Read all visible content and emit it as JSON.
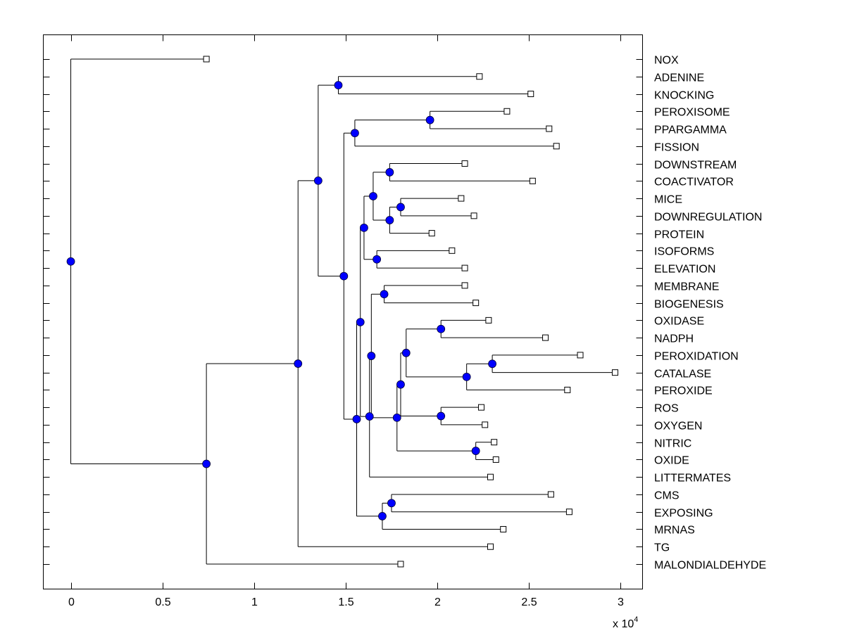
{
  "chart_data": {
    "type": "dendrogram",
    "title": "",
    "xlabel": "",
    "ylabel": "",
    "x_exponent_label": "x 10",
    "x_exponent": "4",
    "xlim": [
      -0.15,
      3.12
    ],
    "xticks": [
      0,
      0.5,
      1,
      1.5,
      2,
      2.5,
      3
    ],
    "xtick_labels": [
      "0",
      "0.5",
      "1",
      "1.5",
      "2",
      "2.5",
      "3"
    ],
    "grid": false,
    "node_color": "#0000ff",
    "leaf_marker": "open-square",
    "leaves": [
      "NOX",
      "ADENINE",
      "KNOCKING",
      "PEROXISOME",
      "PPARGAMMA",
      "FISSION",
      "DOWNSTREAM",
      "COACTIVATOR",
      "MICE",
      "DOWNREGULATION",
      "PROTEIN",
      "ISOFORMS",
      "ELEVATION",
      "MEMBRANE",
      "BIOGENESIS",
      "OXIDASE",
      "NADPH",
      "PEROXIDATION",
      "CATALASE",
      "PEROXIDE",
      "ROS",
      "OXYGEN",
      "NITRIC",
      "OXIDE",
      "LITTERMATES",
      "CMS",
      "EXPOSING",
      "MRNAS",
      "TG",
      "MALONDIALDEHYDE"
    ],
    "leaf_values": {
      "NOX": 0.74,
      "ADENINE": 2.23,
      "KNOCKING": 2.51,
      "PEROXISOME": 2.38,
      "PPARGAMMA": 2.61,
      "FISSION": 2.65,
      "DOWNSTREAM": 2.15,
      "COACTIVATOR": 2.52,
      "MICE": 2.13,
      "DOWNREGULATION": 2.2,
      "PROTEIN": 1.97,
      "ISOFORMS": 2.08,
      "ELEVATION": 2.15,
      "MEMBRANE": 2.15,
      "BIOGENESIS": 2.21,
      "OXIDASE": 2.28,
      "NADPH": 2.59,
      "PEROXIDATION": 2.78,
      "CATALASE": 2.97,
      "PEROXIDE": 2.71,
      "ROS": 2.24,
      "OXYGEN": 2.26,
      "NITRIC": 2.31,
      "OXIDE": 2.32,
      "LITTERMATES": 2.29,
      "CMS": 2.62,
      "EXPOSING": 2.72,
      "MRNAS": 2.36,
      "TG": 2.29,
      "MALONDIALDEHYDE": 1.8
    },
    "tree": {
      "id": "root",
      "x": 0.0,
      "children": [
        "NOX",
        {
          "id": "A",
          "x": 0.74,
          "children": [
            {
              "id": "B",
              "x": 1.24,
              "children": [
                {
                  "id": "C",
                  "x": 1.35,
                  "children": [
                    {
                      "id": "D",
                      "x": 1.46,
                      "children": [
                        "ADENINE",
                        "KNOCKING"
                      ]
                    },
                    {
                      "id": "E",
                      "x": 1.49,
                      "children": [
                        {
                          "id": "F",
                          "x": 1.55,
                          "children": [
                            {
                              "id": "H",
                              "x": 1.96,
                              "children": [
                                "PEROXISOME",
                                "PPARGAMMA"
                              ]
                            },
                            "FISSION"
                          ]
                        },
                        {
                          "id": "G",
                          "x": 1.56,
                          "children": [
                            {
                              "id": "I",
                              "x": 1.58,
                              "children": [
                                {
                                  "id": "K",
                                  "x": 1.6,
                                  "children": [
                                    {
                                      "id": "M",
                                      "x": 1.65,
                                      "children": [
                                        {
                                          "id": "O",
                                          "x": 1.74,
                                          "children": [
                                            "DOWNSTREAM",
                                            "COACTIVATOR"
                                          ]
                                        },
                                        {
                                          "id": "P",
                                          "x": 1.74,
                                          "children": [
                                            {
                                              "id": "Q",
                                              "x": 1.8,
                                              "children": [
                                                "MICE",
                                                "DOWNREGULATION"
                                              ]
                                            },
                                            "PROTEIN"
                                          ]
                                        }
                                      ]
                                    },
                                    {
                                      "id": "N",
                                      "x": 1.67,
                                      "children": [
                                        "ISOFORMS",
                                        "ELEVATION"
                                      ]
                                    }
                                  ]
                                },
                                {
                                  "id": "L",
                                  "x": 1.63,
                                  "children": [
                                    {
                                      "id": "R",
                                      "x": 1.64,
                                      "children": [
                                        {
                                          "id": "T",
                                          "x": 1.71,
                                          "children": [
                                            "MEMBRANE",
                                            "BIOGENESIS"
                                          ]
                                        },
                                        {
                                          "id": "S",
                                          "x": 1.78,
                                          "children": [
                                            {
                                              "id": "U",
                                              "x": 1.8,
                                              "children": [
                                                {
                                                  "id": "W",
                                                  "x": 1.83,
                                                  "children": [
                                                    {
                                                      "id": "Y",
                                                      "x": 2.02,
                                                      "children": [
                                                        "OXIDASE",
                                                        "NADPH"
                                                      ]
                                                    },
                                                    {
                                                      "id": "Z",
                                                      "x": 2.16,
                                                      "children": [
                                                        {
                                                          "id": "AA",
                                                          "x": 2.3,
                                                          "children": [
                                                            "PEROXIDATION",
                                                            "CATALASE"
                                                          ]
                                                        },
                                                        "PEROXIDE"
                                                      ]
                                                    }
                                                  ]
                                                },
                                                {
                                                  "id": "X",
                                                  "x": 2.02,
                                                  "children": [
                                                    "ROS",
                                                    "OXYGEN"
                                                  ]
                                                }
                                              ]
                                            },
                                            {
                                              "id": "V",
                                              "x": 2.21,
                                              "children": [
                                                "NITRIC",
                                                "OXIDE"
                                              ]
                                            }
                                          ]
                                        }
                                      ]
                                    },
                                    "LITTERMATES"
                                  ]
                                }
                              ]
                            },
                            {
                              "id": "J",
                              "x": 1.7,
                              "children": [
                                {
                                  "id": "AB",
                                  "x": 1.75,
                                  "children": [
                                    "CMS",
                                    "EXPOSING"
                                  ]
                                },
                                "MRNAS"
                              ]
                            }
                          ]
                        }
                      ]
                    }
                  ]
                },
                "TG"
              ]
            },
            "MALONDIALDEHYDE"
          ]
        }
      ]
    }
  }
}
